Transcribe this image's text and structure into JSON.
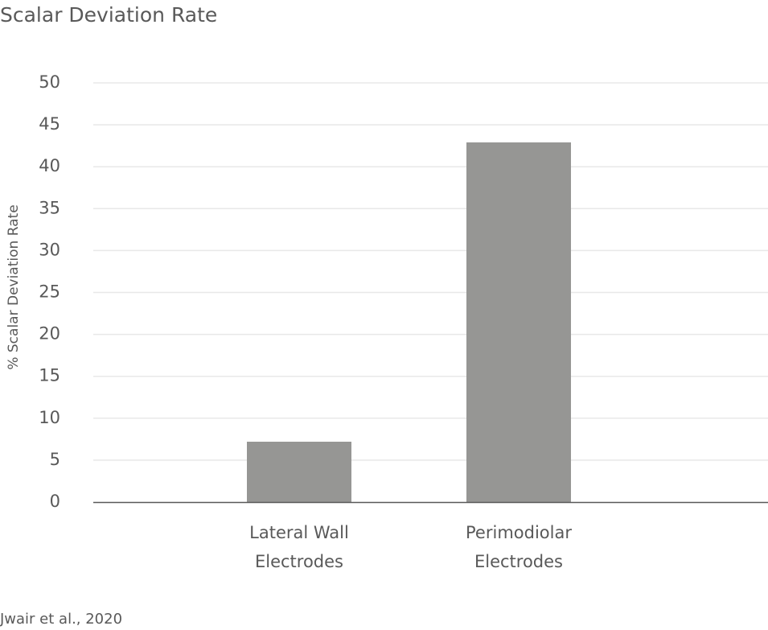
{
  "chart_data": {
    "type": "bar",
    "title": "Scalar Deviation Rate",
    "categories": [
      [
        "Lateral Wall",
        "Electrodes"
      ],
      [
        "Perimodiolar",
        "Electrodes"
      ]
    ],
    "values": [
      7.2,
      42.9
    ],
    "xlabel": "",
    "ylabel": "% Scalar Deviation Rate",
    "ylim": [
      0,
      50
    ],
    "yticks": [
      0,
      5,
      10,
      15,
      20,
      25,
      30,
      35,
      40,
      45,
      50
    ],
    "grid": true,
    "legend": "none",
    "bar_color": "#969694",
    "gridline_color": "#e8e8e8",
    "axis_color": "#595959",
    "text_color": "#595959",
    "source": "Jwair et al., 2020"
  }
}
